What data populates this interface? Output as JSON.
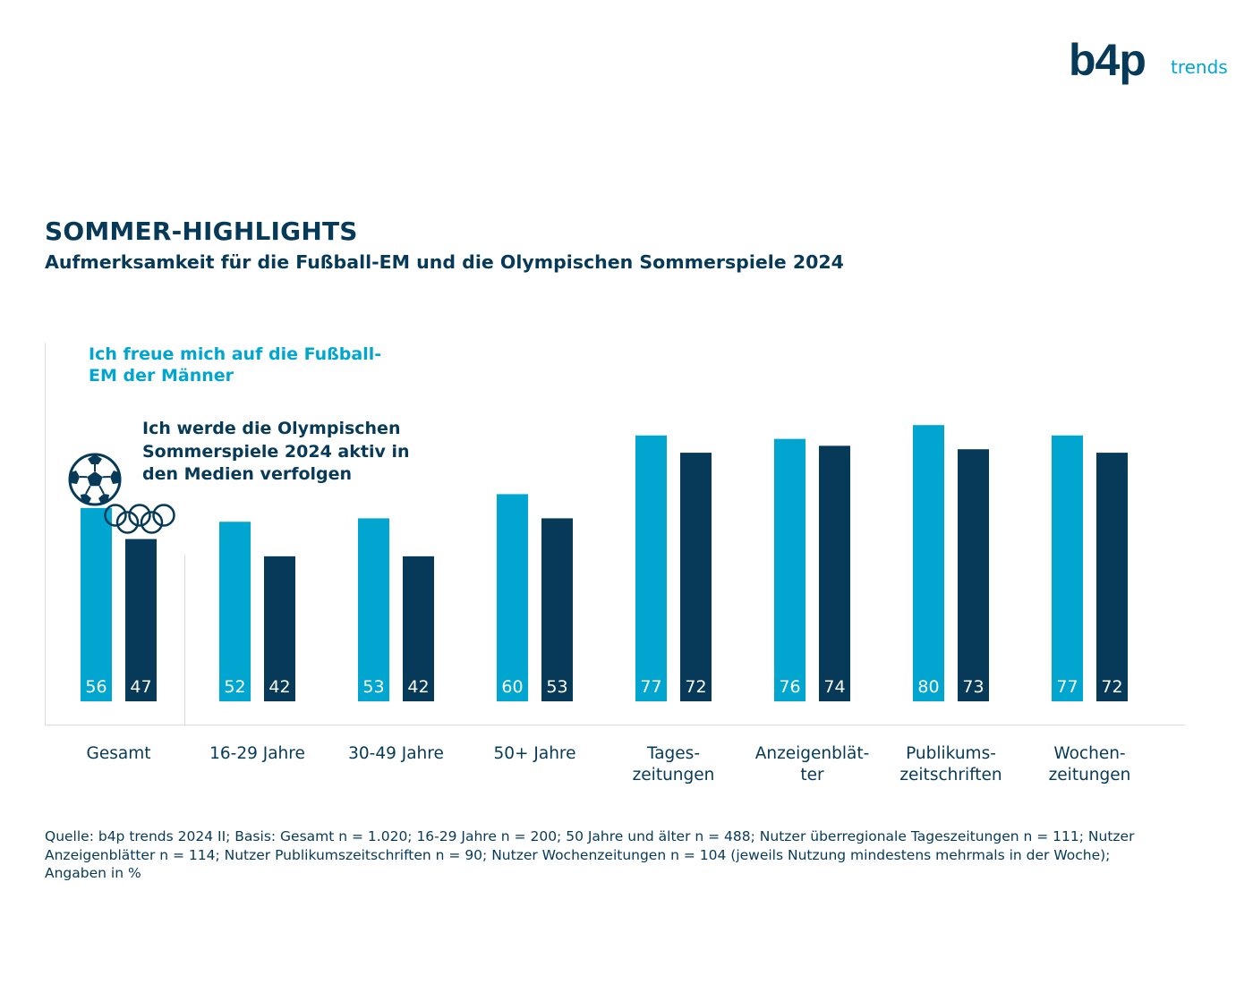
{
  "logo": {
    "brand": "b4p",
    "suffix": "trends"
  },
  "title": "SOMMER-HIGHLIGHTS",
  "subtitle": "Aufmerksamkeit für die Fußball-EM und die Olympischen Sommerspiele 2024",
  "colors": {
    "em": "#00a6cf",
    "olympia": "#063a58",
    "text": "#063a58",
    "axis": "#dcdcdc"
  },
  "icons": [
    "soccer-ball-icon",
    "olympic-rings-icon"
  ],
  "legend": {
    "em": "Ich freue mich auf die Fußball-EM der Männer",
    "olympia": "Ich werde die Olympischen Sommerspiele 2024 aktiv in den Medien verfolgen"
  },
  "chart_data": {
    "type": "bar",
    "categories": [
      "Gesamt",
      "16-29 Jahre",
      "30-49 Jahre",
      "50+ Jahre",
      "Tages-\nzeitungen",
      "Anzeigenblät-\nter",
      "Publikums-\nzeitschriften",
      "Wochen-\nzeitungen"
    ],
    "series": [
      {
        "name": "Ich freue mich auf die Fußball-EM der Männer",
        "color": "#00a6cf",
        "values": [
          56,
          52,
          53,
          60,
          77,
          76,
          80,
          77
        ]
      },
      {
        "name": "Ich werde die Olympischen Sommerspiele 2024 aktiv in den Medien verfolgen",
        "color": "#063a58",
        "values": [
          47,
          42,
          42,
          53,
          72,
          74,
          73,
          72
        ]
      }
    ],
    "unit": "%",
    "data_labels": true,
    "grid": false,
    "legend_position": "top-left"
  },
  "source": "Quelle: b4p trends 2024 II; Basis: Gesamt n = 1.020; 16-29 Jahre n = 200; 50 Jahre und älter n = 488; Nutzer überregionale Tageszeitungen n = 111; Nutzer Anzeigenblätter n = 114; Nutzer Publikumszeitschriften n = 90; Nutzer Wochenzeitungen n = 104 (jeweils Nutzung mindestens mehrmals in der Woche); Angaben in %"
}
